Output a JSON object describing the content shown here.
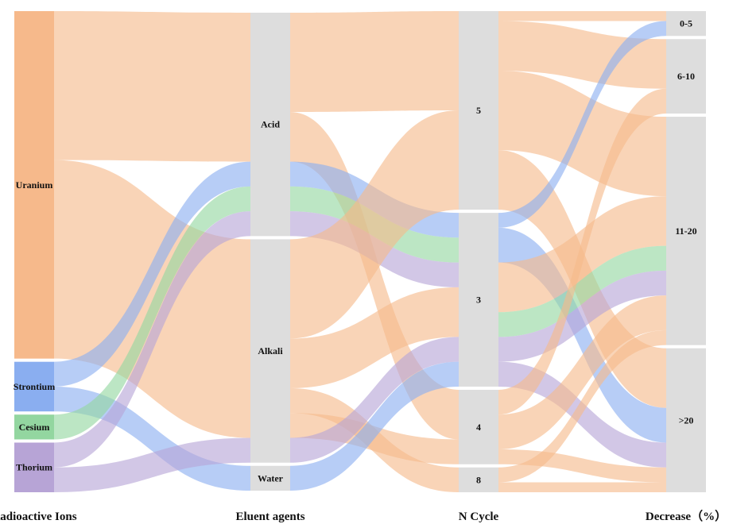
{
  "diagram": {
    "type": "sankey",
    "columns": [
      {
        "title": "Radioactive Ions",
        "nodes": [
          {
            "id": "uranium",
            "label": "Uranium",
            "color": "#f6b98b"
          },
          {
            "id": "strontium",
            "label": "Strontium",
            "color": "#8aaef0"
          },
          {
            "id": "cesium",
            "label": "Cesium",
            "color": "#93d6a0"
          },
          {
            "id": "thorium",
            "label": "Thorium",
            "color": "#b7a4d6"
          }
        ]
      },
      {
        "title": "Eluent agents",
        "nodes": [
          {
            "id": "acid",
            "label": "Acid",
            "color": "#dddddd"
          },
          {
            "id": "alkali",
            "label": "Alkali",
            "color": "#dddddd"
          },
          {
            "id": "water",
            "label": "Water",
            "color": "#dddddd"
          }
        ]
      },
      {
        "title": "N Cycle",
        "nodes": [
          {
            "id": "c5",
            "label": "5",
            "color": "#dddddd"
          },
          {
            "id": "c3",
            "label": "3",
            "color": "#dddddd"
          },
          {
            "id": "c4",
            "label": "4",
            "color": "#dddddd"
          },
          {
            "id": "c8",
            "label": "8",
            "color": "#dddddd"
          }
        ]
      },
      {
        "title": "Decrease（%）",
        "nodes": [
          {
            "id": "d0_5",
            "label": "0-5",
            "color": "#dddddd"
          },
          {
            "id": "d6_10",
            "label": "6-10",
            "color": "#dddddd"
          },
          {
            "id": "d11_20",
            "label": "11-20",
            "color": "#dddddd"
          },
          {
            "id": "d20",
            "label": ">20",
            "color": "#dddddd"
          }
        ]
      }
    ],
    "flows": [
      {
        "source": "uranium",
        "target": "acid",
        "value": 30,
        "ion": "uranium"
      },
      {
        "source": "uranium",
        "target": "alkali",
        "value": 40,
        "ion": "uranium"
      },
      {
        "source": "strontium",
        "target": "acid",
        "value": 5,
        "ion": "strontium"
      },
      {
        "source": "strontium",
        "target": "water",
        "value": 5,
        "ion": "strontium"
      },
      {
        "source": "cesium",
        "target": "acid",
        "value": 5,
        "ion": "cesium"
      },
      {
        "source": "thorium",
        "target": "acid",
        "value": 5,
        "ion": "thorium"
      },
      {
        "source": "thorium",
        "target": "alkali",
        "value": 5,
        "ion": "thorium"
      },
      {
        "source": "acid",
        "target": "c5",
        "value": 20,
        "ion": "uranium"
      },
      {
        "source": "acid",
        "target": "c4",
        "value": 10,
        "ion": "uranium"
      },
      {
        "source": "acid",
        "target": "c3",
        "value": 5,
        "ion": "strontium"
      },
      {
        "source": "acid",
        "target": "c3",
        "value": 5,
        "ion": "cesium"
      },
      {
        "source": "acid",
        "target": "c3",
        "value": 5,
        "ion": "thorium"
      },
      {
        "source": "alkali",
        "target": "c5",
        "value": 20,
        "ion": "uranium"
      },
      {
        "source": "alkali",
        "target": "c3",
        "value": 10,
        "ion": "uranium"
      },
      {
        "source": "alkali",
        "target": "c8",
        "value": 5,
        "ion": "uranium"
      },
      {
        "source": "alkali",
        "target": "c4",
        "value": 5,
        "ion": "uranium"
      },
      {
        "source": "alkali",
        "target": "c3",
        "value": 5,
        "ion": "thorium"
      },
      {
        "source": "water",
        "target": "c3",
        "value": 5,
        "ion": "strontium"
      },
      {
        "source": "c5",
        "target": "d0_5",
        "value": 2,
        "ion": "uranium"
      },
      {
        "source": "c5",
        "target": "d6_10",
        "value": 10,
        "ion": "uranium"
      },
      {
        "source": "c5",
        "target": "d11_20",
        "value": 16,
        "ion": "uranium"
      },
      {
        "source": "c5",
        "target": "d20",
        "value": 12,
        "ion": "uranium"
      },
      {
        "source": "c3",
        "target": "d0_5",
        "value": 3,
        "ion": "strontium"
      },
      {
        "source": "c3",
        "target": "d20",
        "value": 7,
        "ion": "strontium"
      },
      {
        "source": "c3",
        "target": "d11_20",
        "value": 10,
        "ion": "uranium"
      },
      {
        "source": "c3",
        "target": "d11_20",
        "value": 5,
        "ion": "cesium"
      },
      {
        "source": "c3",
        "target": "d11_20",
        "value": 5,
        "ion": "thorium"
      },
      {
        "source": "c3",
        "target": "d20",
        "value": 5,
        "ion": "thorium"
      },
      {
        "source": "c4",
        "target": "d6_10",
        "value": 5,
        "ion": "uranium"
      },
      {
        "source": "c4",
        "target": "d11_20",
        "value": 7,
        "ion": "uranium"
      },
      {
        "source": "c4",
        "target": "d20",
        "value": 3,
        "ion": "uranium"
      },
      {
        "source": "c8",
        "target": "d11_20",
        "value": 3,
        "ion": "uranium"
      },
      {
        "source": "c8",
        "target": "d20",
        "value": 2,
        "ion": "uranium"
      }
    ]
  }
}
